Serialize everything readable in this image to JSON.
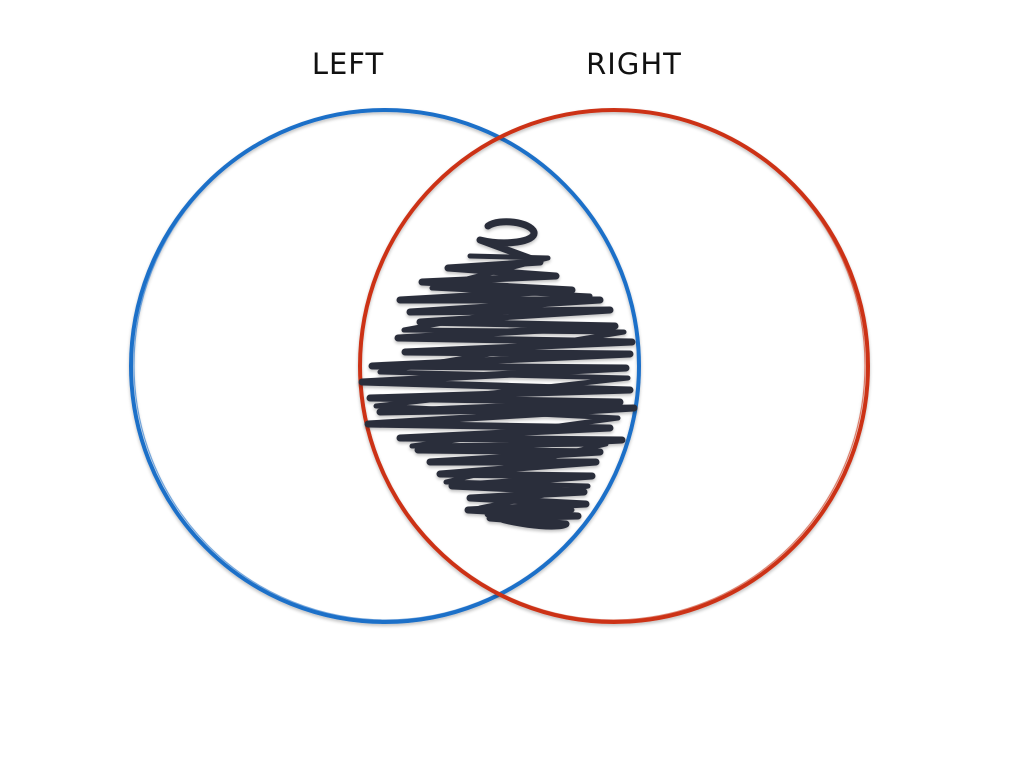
{
  "diagram": {
    "type": "venn",
    "sets": [
      {
        "label": "LEFT",
        "color": "#1e6fc8"
      },
      {
        "label": "RIGHT",
        "color": "#cc3318"
      }
    ],
    "intersection": {
      "fill": "scribble",
      "color": "#2b2e3b"
    }
  }
}
